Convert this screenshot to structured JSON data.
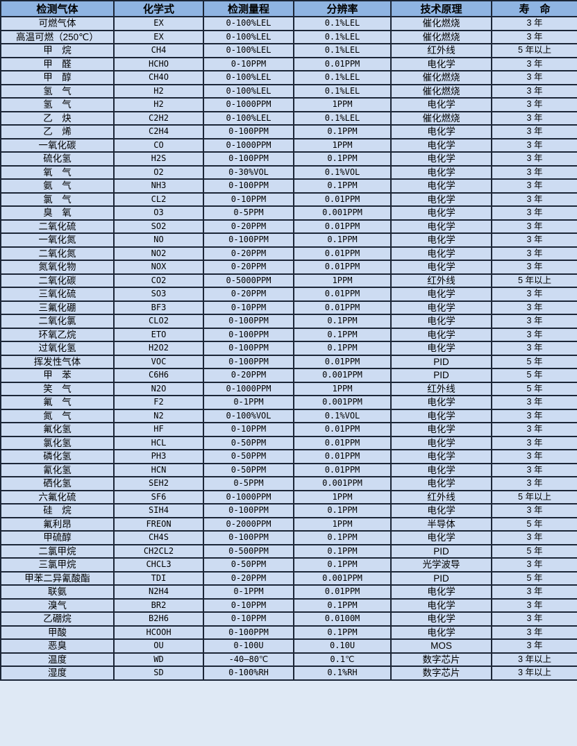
{
  "chart_data": {
    "type": "table",
    "title": "",
    "columns": [
      "检测气体",
      "化学式",
      "检测量程",
      "分辨率",
      "技术原理",
      "寿　命"
    ],
    "rows": [
      [
        "可燃气体",
        "EX",
        "0-100%LEL",
        "0.1%LEL",
        "催化燃烧",
        "3 年"
      ],
      [
        "高温可燃（250℃）",
        "EX",
        "0-100%LEL",
        "0.1%LEL",
        "催化燃烧",
        "3 年"
      ],
      [
        "甲　烷",
        "CH4",
        "0-100%LEL",
        "0.1%LEL",
        "红外线",
        "5 年以上"
      ],
      [
        "甲　醛",
        "HCHO",
        "0-10PPM",
        "0.01PPM",
        "电化学",
        "3 年"
      ],
      [
        "甲　醇",
        "CH4O",
        "0-100%LEL",
        "0.1%LEL",
        "催化燃烧",
        "3 年"
      ],
      [
        "氢　气",
        "H2",
        "0-100%LEL",
        "0.1%LEL",
        "催化燃烧",
        "3 年"
      ],
      [
        "氢　气",
        "H2",
        "0-1000PPM",
        "1PPM",
        "电化学",
        "3 年"
      ],
      [
        "乙　炔",
        "C2H2",
        "0-100%LEL",
        "0.1%LEL",
        "催化燃烧",
        "3 年"
      ],
      [
        "乙　烯",
        "C2H4",
        "0-100PPM",
        "0.1PPM",
        "电化学",
        "3 年"
      ],
      [
        "一氧化碳",
        "CO",
        "0-1000PPM",
        "1PPM",
        "电化学",
        "3 年"
      ],
      [
        "硫化氢",
        "H2S",
        "0-100PPM",
        "0.1PPM",
        "电化学",
        "3 年"
      ],
      [
        "氧　气",
        "O2",
        "0-30%VOL",
        "0.1%VOL",
        "电化学",
        "3 年"
      ],
      [
        "氨　气",
        "NH3",
        "0-100PPM",
        "0.1PPM",
        "电化学",
        "3 年"
      ],
      [
        "氯　气",
        "CL2",
        "0-10PPM",
        "0.01PPM",
        "电化学",
        "3 年"
      ],
      [
        "臭　氧",
        "O3",
        "0-5PPM",
        "0.001PPM",
        "电化学",
        "3 年"
      ],
      [
        "二氧化硫",
        "SO2",
        "0-20PPM",
        "0.01PPM",
        "电化学",
        "3 年"
      ],
      [
        "一氧化氮",
        "NO",
        "0-100PPM",
        "0.1PPM",
        "电化学",
        "3 年"
      ],
      [
        "二氧化氮",
        "NO2",
        "0-20PPM",
        "0.01PPM",
        "电化学",
        "3 年"
      ],
      [
        "氮氧化物",
        "NOX",
        "0-20PPM",
        "0.01PPM",
        "电化学",
        "3 年"
      ],
      [
        "二氧化碳",
        "CO2",
        "0-5000PPM",
        "1PPM",
        "红外线",
        "5 年以上"
      ],
      [
        "三氧化硫",
        "SO3",
        "0-20PPM",
        "0.01PPM",
        "电化学",
        "3 年"
      ],
      [
        "三氟化硼",
        "BF3",
        "0-10PPM",
        "0.01PPM",
        "电化学",
        "3 年"
      ],
      [
        "二氧化氯",
        "CLO2",
        "0-100PPM",
        "0.1PPM",
        "电化学",
        "3 年"
      ],
      [
        "环氧乙烷",
        "ETO",
        "0-100PPM",
        "0.1PPM",
        "电化学",
        "3 年"
      ],
      [
        "过氧化氢",
        "H2O2",
        "0-100PPM",
        "0.1PPM",
        "电化学",
        "3 年"
      ],
      [
        "挥发性气体",
        "VOC",
        "0-100PPM",
        "0.01PPM",
        "PID",
        "5 年"
      ],
      [
        "甲　苯",
        "C6H6",
        "0-20PPM",
        "0.001PPM",
        "PID",
        "5 年"
      ],
      [
        "笑　气",
        "N2O",
        "0-1000PPM",
        "1PPM",
        "红外线",
        "5 年"
      ],
      [
        "氟　气",
        "F2",
        "0-1PPM",
        "0.001PPM",
        "电化学",
        "3 年"
      ],
      [
        "氮　气",
        "N2",
        "0-100%VOL",
        "0.1%VOL",
        "电化学",
        "3 年"
      ],
      [
        "氟化氢",
        "HF",
        "0-10PPM",
        "0.01PPM",
        "电化学",
        "3 年"
      ],
      [
        "氯化氢",
        "HCL",
        "0-50PPM",
        "0.01PPM",
        "电化学",
        "3 年"
      ],
      [
        "磷化氢",
        "PH3",
        "0-50PPM",
        "0.01PPM",
        "电化学",
        "3 年"
      ],
      [
        "氰化氢",
        "HCN",
        "0-50PPM",
        "0.01PPM",
        "电化学",
        "3 年"
      ],
      [
        "硒化氢",
        "SEH2",
        "0-5PPM",
        "0.001PPM",
        "电化学",
        "3 年"
      ],
      [
        "六氟化硫",
        "SF6",
        "0-1000PPM",
        "1PPM",
        "红外线",
        "5 年以上"
      ],
      [
        "硅　烷",
        "SIH4",
        "0-100PPM",
        "0.1PPM",
        "电化学",
        "3 年"
      ],
      [
        "氟利昂",
        "FREON",
        "0-2000PPM",
        "1PPM",
        "半导体",
        "5 年"
      ],
      [
        "甲硫醇",
        "CH4S",
        "0-100PPM",
        "0.1PPM",
        "电化学",
        "3 年"
      ],
      [
        "二氯甲烷",
        "CH2CL2",
        "0-500PPM",
        "0.1PPM",
        "PID",
        "5 年"
      ],
      [
        "三氯甲烷",
        "CHCL3",
        "0-50PPM",
        "0.1PPM",
        "光学波导",
        "3 年"
      ],
      [
        "甲苯二异氰酸酯",
        "TDI",
        "0-20PPM",
        "0.001PPM",
        "PID",
        "5 年"
      ],
      [
        "联氨",
        "N2H4",
        "0-1PPM",
        "0.01PPM",
        "电化学",
        "3 年"
      ],
      [
        "溴气",
        "BR2",
        "0-10PPM",
        "0.1PPM",
        "电化学",
        "3 年"
      ],
      [
        "乙硼烷",
        "B2H6",
        "0-10PPM",
        "0.0100M",
        "电化学",
        "3 年"
      ],
      [
        "甲酸",
        "HCOOH",
        "0-100PPM",
        "0.1PPM",
        "电化学",
        "3 年"
      ],
      [
        "恶臭",
        "OU",
        "0-100U",
        "0.10U",
        "MOS",
        "3 年"
      ],
      [
        "温度",
        "WD",
        "-40—80℃",
        "0.1℃",
        "数字芯片",
        "3 年以上"
      ],
      [
        "湿度",
        "SD",
        "0-100%RH",
        "0.1%RH",
        "数字芯片",
        "3 年以上"
      ]
    ],
    "column_keys": [
      "gas-name",
      "chemical-formula",
      "detection-range",
      "resolution",
      "technology",
      "lifespan"
    ],
    "layout": {
      "header_position": "top",
      "grid": "on"
    }
  },
  "colors": {
    "header_bg": "#8fb4e2",
    "row_bg": "#cddcf2",
    "border": "#1b2536",
    "text": "#000000"
  }
}
